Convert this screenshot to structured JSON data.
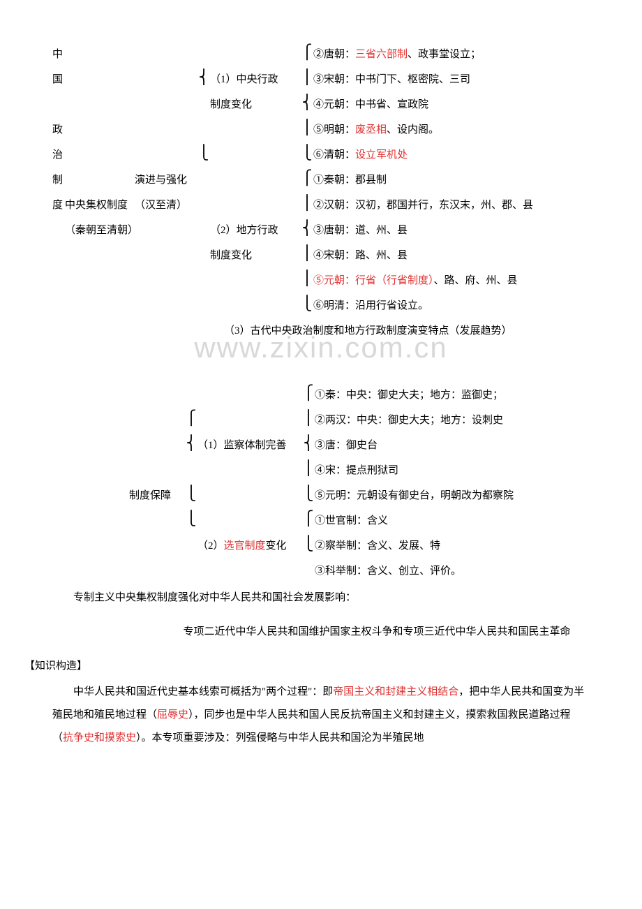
{
  "watermark": "www.zixin.com.cn",
  "vert_label_chars": [
    "中",
    "国",
    "",
    "政",
    "治",
    "制",
    "度"
  ],
  "col2_lines": [
    "",
    "",
    "",
    "",
    "",
    "",
    "中央集权制度",
    "（秦朝至清朝）"
  ],
  "col3_lines": [
    "",
    "",
    "",
    "",
    "",
    "演进与强化",
    "（汉至清）"
  ],
  "sec1_lines_a": [
    "",
    "（1）中央行政",
    "      制度变化",
    "",
    "",
    ""
  ],
  "sec1_items_a": [
    {
      "pre": "②唐朝：",
      "red": "三省六部制",
      "post": "、政事堂设立；"
    },
    {
      "pre": "③宋朝：中书门下、枢密院、三司",
      "red": "",
      "post": ""
    },
    {
      "pre": "④元朝：中书省、宣政院",
      "red": "",
      "post": ""
    },
    {
      "pre": "⑤明朝：",
      "red": "废丞相",
      "post": "、设内阁。"
    },
    {
      "pre": "⑥清朝：",
      "red": "设立军机处",
      "post": ""
    }
  ],
  "sec1_items_b": [
    {
      "pre": "①秦朝：郡县制",
      "red": "",
      "post": ""
    },
    {
      "pre": "②汉朝：汉初，郡国并行，东汉末，州、郡、县",
      "red": "",
      "post": ""
    },
    {
      "pre": "③唐朝：道、州、县",
      "red": "",
      "post": ""
    },
    {
      "pre": "④宋朝：路、州、县",
      "red": "",
      "post": ""
    },
    {
      "pre": "",
      "red": "⑤元朝：行省（行省制度）",
      "post": "、路、府、州、县"
    },
    {
      "pre": "⑥明清：沿用行省设立。",
      "red": "",
      "post": ""
    }
  ],
  "sec1_lines_b": [
    "",
    "",
    "（2）地方行政",
    "      制度变化",
    "",
    ""
  ],
  "sec1_line3": "（3）古代中央政治制度和地方行政制度演变特点（发展趋势）",
  "brace1a": [
    "",
    "⎨",
    "",
    "",
    "⎩"
  ],
  "brace2a": [
    "⎧",
    "⎪",
    "⎨",
    "⎪",
    "⎩"
  ],
  "brace2b": [
    "⎧",
    "⎪",
    "⎨",
    "⎪",
    "⎪",
    "⎩"
  ],
  "sec2_left": "制度保障",
  "sec2_mid1": "（1）监察体制完善",
  "sec2_mid2_pre": "（2）",
  "sec2_mid2_red": "选官制度",
  "sec2_mid2_post": "变化",
  "sec2_items1": [
    "①秦：中央：御史大夫；地方：监御史；",
    "②两汉：中央：御史大夫；地方：设刺史",
    "③唐：御史台",
    "④宋：提点刑狱司",
    "⑤元明：元朝设有御史台，明朝改为都察院"
  ],
  "sec2_items2": [
    "①世官制：含义",
    "②察举制：含义、发展、特",
    "③科举制：含义、创立、评价。"
  ],
  "sec2_b1": [
    "",
    "⎧",
    "⎨",
    "",
    "⎩"
  ],
  "sec2_b2a": [
    "⎧",
    "⎪",
    "⎨",
    "⎪",
    "⎩"
  ],
  "sec2_b2b": [
    "⎧",
    "⎩",
    ""
  ],
  "footer1": "专制主义中央集权制度强化对中华人民共和国社会发展影响：",
  "footer2": "专项二近代中华人民共和国维护国家主权斗争和专项三近代中华人民共和国民主革命",
  "footer3": "【知识构造】",
  "footer4_parts": [
    {
      "t": "中华人民共和国近代史基本线索可概括为\"两个过程\"：即",
      "r": 0
    },
    {
      "t": "帝国主义和封建主义相结合",
      "r": 1
    },
    {
      "t": "，把中华人民共和国变为半殖民地和殖民地过程（",
      "r": 0
    },
    {
      "t": "屈辱史",
      "r": 1
    },
    {
      "t": "），同步也是中华人民共和国人民反抗帝国主义和封建主义，摸索救国救民道路过程（",
      "r": 0
    },
    {
      "t": "抗争史和摸索史",
      "r": 1
    },
    {
      "t": "）。本专项重要涉及：列强侵略与中华人民共和国沦为半殖民地",
      "r": 0
    }
  ]
}
